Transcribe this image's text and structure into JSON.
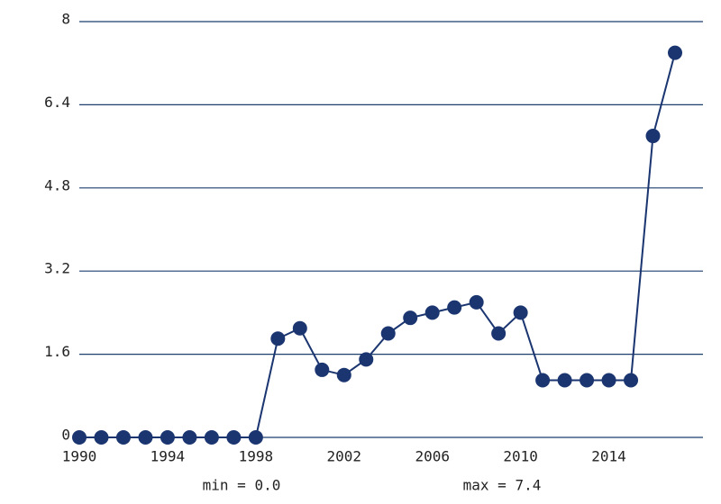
{
  "chart_data": {
    "type": "line",
    "x": [
      1990,
      1991,
      1992,
      1993,
      1994,
      1995,
      1996,
      1997,
      1998,
      1999,
      2000,
      2001,
      2002,
      2003,
      2004,
      2005,
      2006,
      2007,
      2008,
      2009,
      2010,
      2011,
      2012,
      2013,
      2014,
      2015,
      2016,
      2017
    ],
    "values": [
      0,
      0,
      0,
      0,
      0,
      0,
      0,
      0,
      0,
      1.9,
      2.1,
      1.3,
      1.2,
      1.5,
      2.0,
      2.3,
      2.4,
      2.5,
      2.6,
      2.0,
      2.4,
      1.1,
      1.1,
      1.1,
      1.1,
      1.1,
      5.8,
      7.4
    ],
    "color": "#1a3570",
    "xlim": [
      1990,
      2017
    ],
    "xticks": [
      1990,
      1994,
      1998,
      2002,
      2006,
      2010,
      2014
    ],
    "ylim": [
      0,
      8
    ],
    "yticks": [
      0,
      1.6,
      3.2,
      4.8,
      6.4,
      8
    ],
    "grid": true,
    "annotations": [
      "min = 0.0",
      "max = 7.4"
    ]
  }
}
